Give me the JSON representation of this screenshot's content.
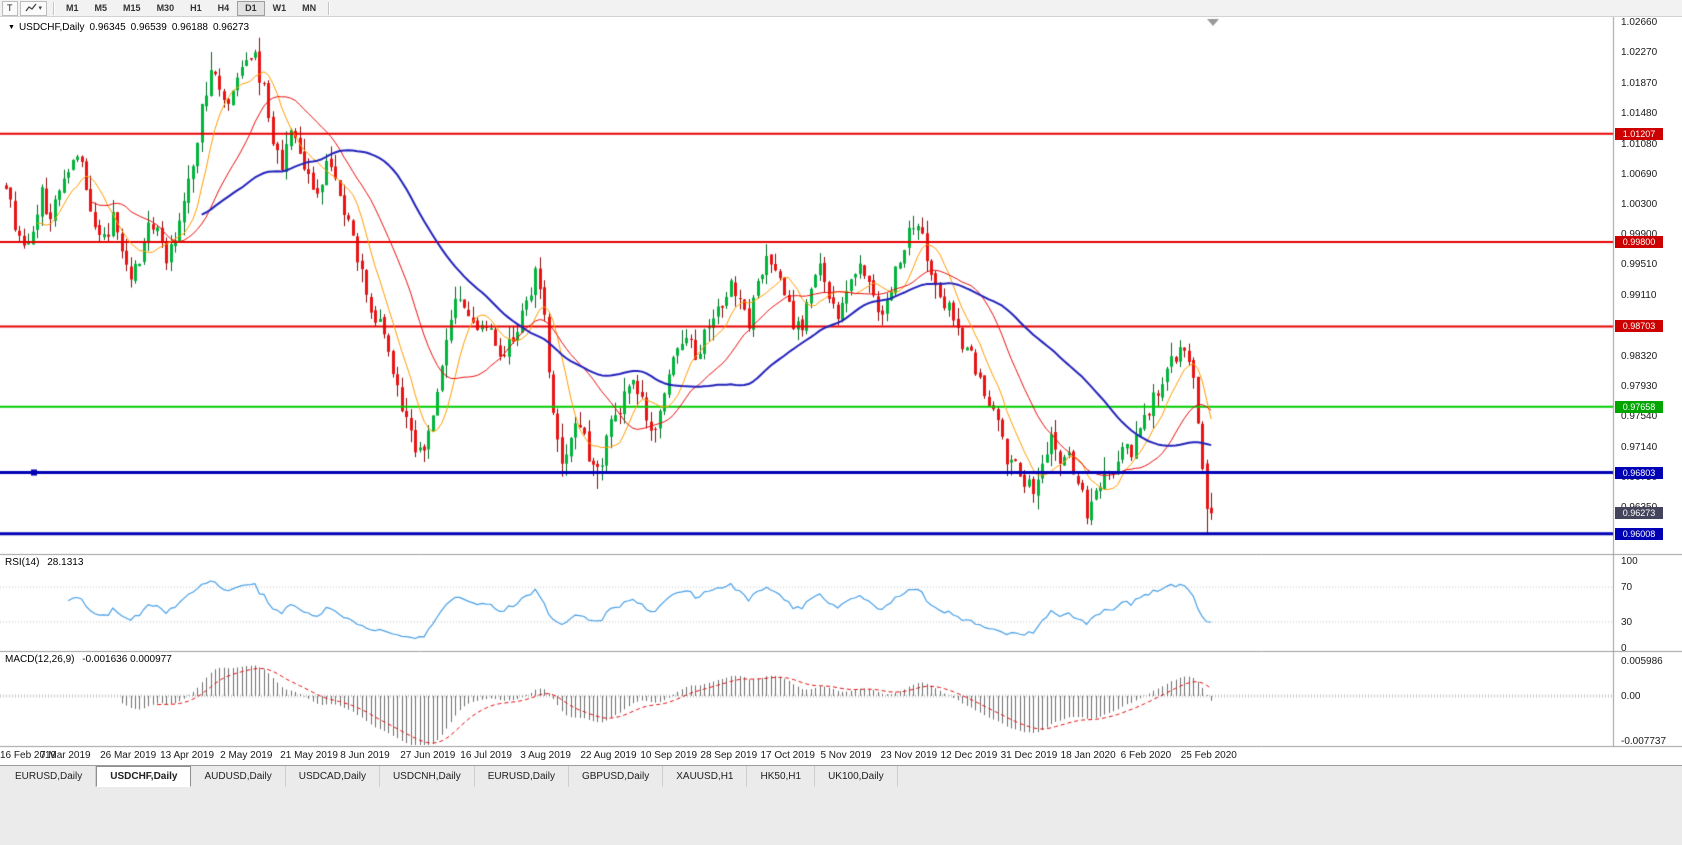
{
  "icons": {
    "title_caret": "▼",
    "dropdown_caret": "▾"
  },
  "toolbar": {
    "text_tool": "T",
    "timeframes": [
      "M1",
      "M5",
      "M15",
      "M30",
      "H1",
      "H4",
      "D1",
      "W1",
      "MN"
    ],
    "active_timeframe": "D1"
  },
  "chart": {
    "title": "USDCHF,Daily",
    "ohlc": {
      "open": "0.96345",
      "high": "0.96539",
      "low": "0.96188",
      "close": "0.96273"
    },
    "y_ticks": [
      "1.02660",
      "1.02270",
      "1.01870",
      "1.01480",
      "1.01080",
      "1.00690",
      "1.00300",
      "0.99900",
      "0.99510",
      "0.99110",
      "0.98720",
      "0.98320",
      "0.97930",
      "0.97540",
      "0.97140",
      "0.96750",
      "0.96350",
      "0.95960"
    ],
    "hlines": [
      {
        "label": "1.01207",
        "price": 1.01207,
        "color": "#E60000",
        "width": 2,
        "tag_bg": "#CC0000"
      },
      {
        "label": "0.99800",
        "price": 0.998,
        "color": "#E60000",
        "width": 2,
        "tag_bg": "#CC0000"
      },
      {
        "label": "0.98703",
        "price": 0.98703,
        "color": "#E60000",
        "width": 2,
        "tag_bg": "#CC0000"
      },
      {
        "label": "0.97658",
        "price": 0.97658,
        "color": "#00CC00",
        "width": 2,
        "tag_bg": "#00A500"
      },
      {
        "label": "0.96803",
        "price": 0.96803,
        "color": "#0000B4",
        "width": 3,
        "tag_bg": "#0000B4"
      },
      {
        "label": "0.96008",
        "price": 0.96008,
        "color": "#0000B4",
        "width": 3,
        "tag_bg": "#0000B4"
      }
    ],
    "current_tag": {
      "label": "0.96273",
      "price": 0.96273,
      "bg": "#44445C"
    },
    "dates": [
      "16 Feb 2019",
      "7 Mar 2019",
      "26 Mar 2019",
      "13 Apr 2019",
      "2 May 2019",
      "21 May 2019",
      "8 Jun 2019",
      "27 Jun 2019",
      "16 Jul 2019",
      "3 Aug 2019",
      "22 Aug 2019",
      "10 Sep 2019",
      "28 Sep 2019",
      "17 Oct 2019",
      "5 Nov 2019",
      "23 Nov 2019",
      "12 Dec 2019",
      "31 Dec 2019",
      "18 Jan 2020",
      "6 Feb 2020",
      "25 Feb 2020"
    ]
  },
  "rsi": {
    "label": "RSI(14)",
    "value": "28.1313",
    "ticks": [
      "100",
      "70",
      "30",
      "0"
    ],
    "levels": [
      70,
      30
    ],
    "color": "#4AA0E6"
  },
  "macd": {
    "label": "MACD(12,26,9)",
    "values": "-0.001636 0.000977",
    "ticks": [
      "0.005986",
      "0.00",
      "-0.007737"
    ],
    "hist_color": "#6F6F6F",
    "signal_color": "#E01010"
  },
  "tabs": [
    {
      "label": "EURUSD,Daily",
      "active": false
    },
    {
      "label": "USDCHF,Daily",
      "active": true
    },
    {
      "label": "AUDUSD,Daily",
      "active": false
    },
    {
      "label": "USDCAD,Daily",
      "active": false
    },
    {
      "label": "USDCNH,Daily",
      "active": false
    },
    {
      "label": "EURUSD,Daily",
      "active": false
    },
    {
      "label": "GBPUSD,Daily",
      "active": false
    },
    {
      "label": "XAUUSD,H1",
      "active": false
    },
    {
      "label": "HK50,H1",
      "active": false
    },
    {
      "label": "UK100,Daily",
      "active": false
    }
  ],
  "chart_data": {
    "type": "candlestick",
    "count": 272,
    "seed": 11,
    "noise": {
      "drift": 0.0012,
      "wick": 0.0018,
      "gap": 0.0003
    },
    "colors": {
      "up": "#00B43C",
      "up_wick": "#006B24",
      "down": "#E81414",
      "down_wick": "#8E0B0B"
    },
    "ma": [
      {
        "period": 8,
        "color": "#FF9C00",
        "width": 1
      },
      {
        "period": 20,
        "color": "#E81010",
        "width": 1
      },
      {
        "period": 45,
        "color": "#2222BB",
        "width": 2
      }
    ],
    "anchors": [
      [
        0,
        1.0055
      ],
      [
        2,
        1.0005
      ],
      [
        4,
        0.9978
      ],
      [
        6,
        0.9998
      ],
      [
        8,
        1.004
      ],
      [
        10,
        1.0015
      ],
      [
        12,
        1.0045
      ],
      [
        14,
        1.0082
      ],
      [
        16,
        1.0102
      ],
      [
        18,
        1.0055
      ],
      [
        20,
        1.0005
      ],
      [
        22,
        0.9982
      ],
      [
        24,
        1.0008
      ],
      [
        26,
        0.9972
      ],
      [
        28,
        0.993
      ],
      [
        30,
        0.9962
      ],
      [
        32,
        0.9995
      ],
      [
        34,
        1.0002
      ],
      [
        36,
        0.9958
      ],
      [
        38,
        0.9988
      ],
      [
        40,
        1.0025
      ],
      [
        42,
        1.0085
      ],
      [
        44,
        1.015
      ],
      [
        46,
        1.0212
      ],
      [
        48,
        1.0182
      ],
      [
        50,
        1.0148
      ],
      [
        52,
        1.019
      ],
      [
        54,
        1.0212
      ],
      [
        56,
        1.0222
      ],
      [
        58,
        1.0175
      ],
      [
        60,
        1.0108
      ],
      [
        62,
        1.0085
      ],
      [
        64,
        1.0115
      ],
      [
        66,
        1.0092
      ],
      [
        68,
        1.0058
      ],
      [
        70,
        1.0042
      ],
      [
        72,
        1.0078
      ],
      [
        74,
        1.0058
      ],
      [
        76,
        1.0018
      ],
      [
        78,
        0.9982
      ],
      [
        80,
        0.994
      ],
      [
        82,
        0.9898
      ],
      [
        84,
        0.9872
      ],
      [
        86,
        0.9838
      ],
      [
        88,
        0.9788
      ],
      [
        90,
        0.9742
      ],
      [
        92,
        0.9718
      ],
      [
        94,
        0.9706
      ],
      [
        96,
        0.9748
      ],
      [
        98,
        0.9818
      ],
      [
        100,
        0.9882
      ],
      [
        102,
        0.9908
      ],
      [
        104,
        0.9888
      ],
      [
        106,
        0.9868
      ],
      [
        108,
        0.988
      ],
      [
        110,
        0.9854
      ],
      [
        112,
        0.983
      ],
      [
        114,
        0.9856
      ],
      [
        116,
        0.9884
      ],
      [
        118,
        0.9912
      ],
      [
        119,
        0.9948
      ],
      [
        121,
        0.9885
      ],
      [
        123,
        0.9758
      ],
      [
        125,
        0.9702
      ],
      [
        127,
        0.9726
      ],
      [
        129,
        0.9744
      ],
      [
        131,
        0.97
      ],
      [
        133,
        0.9678
      ],
      [
        135,
        0.9724
      ],
      [
        137,
        0.9758
      ],
      [
        139,
        0.9774
      ],
      [
        141,
        0.9798
      ],
      [
        143,
        0.9768
      ],
      [
        145,
        0.9726
      ],
      [
        147,
        0.976
      ],
      [
        149,
        0.9808
      ],
      [
        151,
        0.9838
      ],
      [
        153,
        0.9848
      ],
      [
        155,
        0.9834
      ],
      [
        157,
        0.9858
      ],
      [
        159,
        0.9878
      ],
      [
        161,
        0.9902
      ],
      [
        163,
        0.9922
      ],
      [
        165,
        0.9898
      ],
      [
        167,
        0.9878
      ],
      [
        169,
        0.9918
      ],
      [
        171,
        0.9958
      ],
      [
        173,
        0.9938
      ],
      [
        175,
        0.9904
      ],
      [
        177,
        0.9878
      ],
      [
        179,
        0.9868
      ],
      [
        181,
        0.9918
      ],
      [
        183,
        0.9942
      ],
      [
        185,
        0.9912
      ],
      [
        187,
        0.9888
      ],
      [
        189,
        0.9918
      ],
      [
        191,
        0.9948
      ],
      [
        193,
        0.9938
      ],
      [
        195,
        0.9908
      ],
      [
        197,
        0.9888
      ],
      [
        199,
        0.9918
      ],
      [
        201,
        0.9958
      ],
      [
        203,
        0.9992
      ],
      [
        205,
        1.0002
      ],
      [
        207,
        0.9958
      ],
      [
        209,
        0.9922
      ],
      [
        211,
        0.9902
      ],
      [
        213,
        0.9878
      ],
      [
        215,
        0.9852
      ],
      [
        217,
        0.9828
      ],
      [
        219,
        0.9798
      ],
      [
        221,
        0.9768
      ],
      [
        223,
        0.9742
      ],
      [
        225,
        0.9702
      ],
      [
        227,
        0.9684
      ],
      [
        229,
        0.967
      ],
      [
        231,
        0.9652
      ],
      [
        233,
        0.9694
      ],
      [
        235,
        0.9726
      ],
      [
        237,
        0.9694
      ],
      [
        239,
        0.9704
      ],
      [
        241,
        0.9664
      ],
      [
        243,
        0.9628
      ],
      [
        245,
        0.9646
      ],
      [
        247,
        0.9674
      ],
      [
        249,
        0.969
      ],
      [
        251,
        0.9718
      ],
      [
        253,
        0.97
      ],
      [
        255,
        0.9738
      ],
      [
        257,
        0.9762
      ],
      [
        259,
        0.9786
      ],
      [
        261,
        0.981
      ],
      [
        263,
        0.983
      ],
      [
        265,
        0.984
      ],
      [
        266,
        0.9834
      ],
      [
        267,
        0.9798
      ],
      [
        268,
        0.9744
      ],
      [
        269,
        0.9692
      ],
      [
        270,
        0.9635
      ],
      [
        271,
        0.9627
      ]
    ],
    "overrides": {
      "46": {
        "h": 1.0227
      },
      "56": {
        "h": 1.023
      },
      "94": {
        "l": 0.9694
      },
      "133": {
        "l": 0.9659
      },
      "231": {
        "l": 0.9641
      },
      "243": {
        "l": 0.9613
      },
      "270": {
        "o": 0.9692,
        "h": 0.9697,
        "l": 0.96008,
        "c": 0.9633
      },
      "271": {
        "o": 0.96345,
        "h": 0.96539,
        "l": 0.96188,
        "c": 0.96273
      }
    }
  }
}
